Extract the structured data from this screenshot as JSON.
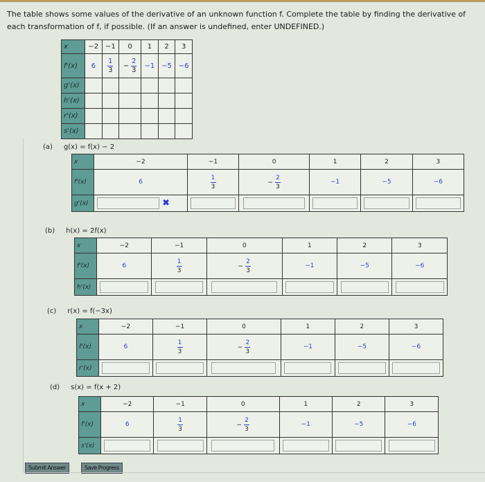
{
  "intro": "The table shows some values of the derivative of an unknown function f. Complete the table by finding the derivative of each transformation of f, if possible. (If an answer is undefined, enter UNDEFINED.)",
  "summary_table": {
    "x_label": "x",
    "fprime_label": "f'(x)",
    "x_values": [
      "−2",
      "−1",
      "0",
      "1",
      "2",
      "3"
    ],
    "fprime_values": [
      {
        "text": "6"
      },
      {
        "num": "1",
        "den": "3"
      },
      {
        "sign": "−",
        "num": "2",
        "den": "3"
      },
      {
        "text": "−1"
      },
      {
        "text": "−5"
      },
      {
        "text": "−6"
      }
    ],
    "row_labels": [
      "g'(x)",
      "h'(x)",
      "r'(x)",
      "s'(x)"
    ]
  },
  "parts": [
    {
      "letter": "(a)",
      "equation": "g(x) = f(x) − 2",
      "answer_label": "g'(x)",
      "answers": [
        "",
        "",
        "",
        "",
        "",
        ""
      ],
      "incorrect_mark_index": 0
    },
    {
      "letter": "(b)",
      "equation": "h(x) = 2f(x)",
      "answer_label": "h'(x)",
      "answers": [
        "",
        "",
        "",
        "",
        "",
        ""
      ]
    },
    {
      "letter": "(c)",
      "equation": "r(x) = f(−3x)",
      "answer_label": "r'(x)",
      "answers": [
        "",
        "",
        "",
        "",
        "",
        ""
      ]
    },
    {
      "letter": "(d)",
      "equation": "s(x) = f(x + 2)",
      "answer_label": "s'(x)",
      "answers": [
        "",
        "",
        "",
        "",
        "",
        ""
      ]
    }
  ],
  "incorrect_icon": "x-mark-icon",
  "incorrect_glyph": "✖",
  "buttons": {
    "submit": "Submit Answer",
    "save": "Save Progress"
  },
  "colors": {
    "header_cell": "#5e9c95",
    "given_value": "#2b3fc7",
    "incorrect": "#2233dd"
  }
}
